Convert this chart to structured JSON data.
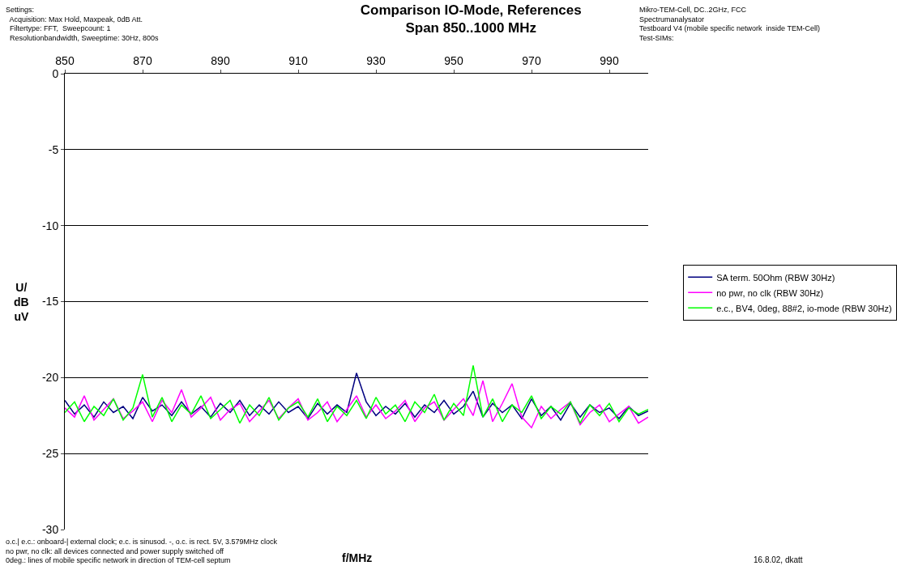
{
  "chart_data": {
    "type": "line",
    "title": "Comparison IO-Mode, References\nSpan 850..1000 MHz",
    "xlabel": "f/MHz",
    "ylabel": "U/\ndB\nuV",
    "x": [
      850,
      852.5,
      855,
      857.5,
      860,
      862.5,
      865,
      867.5,
      870,
      872.5,
      875,
      877.5,
      880,
      882.5,
      885,
      887.5,
      890,
      892.5,
      895,
      897.5,
      900,
      902.5,
      905,
      907.5,
      910,
      912.5,
      915,
      917.5,
      920,
      922.5,
      925,
      927.5,
      930,
      932.5,
      935,
      937.5,
      940,
      942.5,
      945,
      947.5,
      950,
      952.5,
      955,
      957.5,
      960,
      962.5,
      965,
      967.5,
      970,
      972.5,
      975,
      977.5,
      980,
      982.5,
      985,
      987.5,
      990,
      992.5,
      995,
      997.5,
      1000
    ],
    "series": [
      {
        "name": "SA term. 50Ohm (RBW 30Hz)",
        "color": "#000080",
        "values": [
          -21.5,
          -22.4,
          -21.8,
          -22.6,
          -21.6,
          -22.3,
          -21.9,
          -22.7,
          -21.3,
          -22.2,
          -21.8,
          -22.5,
          -21.6,
          -22.4,
          -21.9,
          -22.6,
          -21.7,
          -22.3,
          -21.5,
          -22.5,
          -21.8,
          -22.4,
          -21.6,
          -22.3,
          -21.9,
          -22.7,
          -21.7,
          -22.4,
          -21.8,
          -22.3,
          -19.7,
          -21.6,
          -22.5,
          -21.9,
          -22.4,
          -21.7,
          -22.6,
          -21.8,
          -22.3,
          -21.5,
          -22.4,
          -21.9,
          -20.9,
          -22.6,
          -21.7,
          -22.3,
          -21.8,
          -22.7,
          -21.4,
          -22.5,
          -21.9,
          -22.8,
          -21.7,
          -22.6,
          -21.8,
          -22.3,
          -22.0,
          -22.7,
          -21.9,
          -22.5,
          -22.2
        ]
      },
      {
        "name": "no pwr, no clk (RBW 30Hz)",
        "color": "#ff00ff",
        "values": [
          -22.0,
          -22.6,
          -21.2,
          -22.8,
          -22.1,
          -21.4,
          -22.7,
          -22.2,
          -21.6,
          -22.9,
          -21.5,
          -22.3,
          -20.8,
          -22.6,
          -22.0,
          -21.3,
          -22.8,
          -22.1,
          -21.7,
          -22.9,
          -22.2,
          -21.5,
          -22.7,
          -22.0,
          -21.4,
          -22.8,
          -22.3,
          -21.6,
          -22.9,
          -22.1,
          -21.2,
          -22.6,
          -21.8,
          -22.7,
          -22.2,
          -21.5,
          -22.9,
          -22.0,
          -21.6,
          -22.8,
          -22.1,
          -21.4,
          -22.5,
          -20.2,
          -22.9,
          -21.7,
          -20.4,
          -22.6,
          -23.3,
          -21.9,
          -22.7,
          -22.1,
          -21.6,
          -23.1,
          -22.3,
          -21.8,
          -22.9,
          -22.4,
          -21.9,
          -23.0,
          -22.6
        ]
      },
      {
        "name": "e.c., BV4, 0deg, 88#2, io-mode (RBW 30Hz)",
        "color": "#00ff00",
        "values": [
          -22.3,
          -21.6,
          -22.9,
          -21.9,
          -22.5,
          -21.4,
          -22.8,
          -22.0,
          -19.8,
          -22.6,
          -21.3,
          -22.9,
          -21.8,
          -22.4,
          -21.2,
          -22.7,
          -22.1,
          -21.5,
          -23.0,
          -21.8,
          -22.5,
          -21.3,
          -22.8,
          -22.0,
          -21.6,
          -22.6,
          -21.4,
          -22.9,
          -21.9,
          -22.5,
          -21.5,
          -22.7,
          -21.3,
          -22.4,
          -21.8,
          -22.9,
          -21.6,
          -22.3,
          -21.1,
          -22.8,
          -21.7,
          -22.5,
          -19.2,
          -22.6,
          -21.4,
          -22.9,
          -21.8,
          -22.3,
          -21.2,
          -22.7,
          -21.9,
          -22.4,
          -21.6,
          -23.0,
          -21.8,
          -22.5,
          -21.7,
          -22.9,
          -22.0,
          -22.4,
          -22.1
        ]
      }
    ],
    "xlim": [
      850,
      1000
    ],
    "xticks": [
      850,
      870,
      890,
      910,
      930,
      950,
      970,
      990
    ],
    "ylim": [
      -30,
      0
    ],
    "yticks": [
      0,
      -5,
      -10,
      -15,
      -20,
      -25,
      -30
    ],
    "grid": "y",
    "legend": "right",
    "marker": "none",
    "line_style": "solid",
    "annotations": [
      "Settings:\n  Acquisition: Max Hold, Maxpeak, 0dB Att.\n  Filtertype: FFT,  Sweepcount: 1\n  Resolutionbandwidth, Sweeptime: 30Hz, 800s",
      "Mikro-TEM-Cell, DC..2GHz, FCC\nSpectrumanalysator\nTestboard V4 (mobile specific network  inside TEM-Cell)\nTest-SIMs:",
      "o.c.| e.c.: onboard-| external clock; e.c. is sinusod. -, o.c. is rect. 5V, 3.579MHz clock\nno pwr, no clk: all devices connected and power supply switched off\n0deg.: lines of mobile specific network in direction of TEM-cell septum",
      "16.8.02, dkatt"
    ]
  }
}
